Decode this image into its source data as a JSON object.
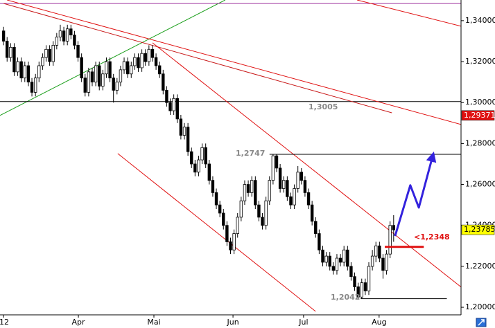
{
  "chart_data": {
    "type": "candlestick",
    "xlim": [
      0,
      130
    ],
    "xticks": [
      {
        "value": 1,
        "label": "12"
      },
      {
        "value": 22.1,
        "label": "Apr"
      },
      {
        "value": 43.4,
        "label": "Mai"
      },
      {
        "value": 65.7,
        "label": "Jun"
      },
      {
        "value": 85.6,
        "label": "Jul"
      },
      {
        "value": 106.9,
        "label": "Aug"
      }
    ],
    "ylim": [
      1.1963,
      1.3501
    ],
    "yticks": [
      {
        "value": 1.2,
        "label": "1,20000"
      },
      {
        "value": 1.22,
        "label": "1,22000"
      },
      {
        "value": 1.24,
        "label": "1,24000"
      },
      {
        "value": 1.26,
        "label": "1,26000"
      },
      {
        "value": 1.28,
        "label": "1,28000"
      },
      {
        "value": 1.3,
        "label": "1,30000"
      },
      {
        "value": 1.32,
        "label": "1,32000"
      },
      {
        "value": 1.34,
        "label": "1,34000"
      }
    ],
    "up_color": "#ffffff",
    "down_color": "#000000",
    "open": [
      1.335,
      1.33,
      1.322,
      1.327,
      1.315,
      1.32,
      1.312,
      1.318,
      1.31,
      1.305,
      1.312,
      1.318,
      1.322,
      1.326,
      1.32,
      1.328,
      1.332,
      1.335,
      1.33,
      1.336,
      1.333,
      1.328,
      1.322,
      1.312,
      1.305,
      1.315,
      1.31,
      1.318,
      1.308,
      1.314,
      1.32,
      1.312,
      1.306,
      1.31,
      1.316,
      1.32,
      1.314,
      1.318,
      1.322,
      1.317,
      1.324,
      1.32,
      1.326,
      1.322,
      1.318,
      1.314,
      1.306,
      1.3,
      1.296,
      1.302,
      1.292,
      1.284,
      1.288,
      1.276,
      1.27,
      1.266,
      1.272,
      1.278,
      1.27,
      1.262,
      1.256,
      1.25,
      1.246,
      1.24,
      1.232,
      1.228,
      1.236,
      1.244,
      1.252,
      1.26,
      1.256,
      1.262,
      1.25,
      1.244,
      1.24,
      1.252,
      1.262,
      1.274,
      1.268,
      1.258,
      1.262,
      1.254,
      1.25,
      1.258,
      1.266,
      1.262,
      1.256,
      1.25,
      1.242,
      1.236,
      1.228,
      1.222,
      1.225,
      1.22,
      1.218,
      1.224,
      1.222,
      1.228,
      1.22,
      1.215,
      1.21,
      1.205,
      1.212,
      1.208,
      1.22,
      1.225,
      1.23,
      1.224,
      1.218,
      1.226,
      1.24
    ],
    "high": [
      1.337,
      1.332,
      1.329,
      1.329,
      1.322,
      1.322,
      1.32,
      1.32,
      1.312,
      1.314,
      1.32,
      1.324,
      1.328,
      1.328,
      1.33,
      1.334,
      1.338,
      1.337,
      1.338,
      1.338,
      1.335,
      1.33,
      1.324,
      1.314,
      1.317,
      1.317,
      1.32,
      1.32,
      1.316,
      1.322,
      1.322,
      1.314,
      1.312,
      1.318,
      1.322,
      1.322,
      1.32,
      1.324,
      1.324,
      1.326,
      1.326,
      1.328,
      1.328,
      1.324,
      1.32,
      1.316,
      1.308,
      1.302,
      1.304,
      1.304,
      1.294,
      1.29,
      1.29,
      1.278,
      1.272,
      1.274,
      1.28,
      1.28,
      1.272,
      1.264,
      1.258,
      1.252,
      1.248,
      1.242,
      1.234,
      1.238,
      1.246,
      1.254,
      1.262,
      1.262,
      1.264,
      1.264,
      1.252,
      1.246,
      1.254,
      1.264,
      1.2747,
      1.2747,
      1.27,
      1.264,
      1.264,
      1.256,
      1.26,
      1.269,
      1.268,
      1.264,
      1.258,
      1.252,
      1.244,
      1.238,
      1.23,
      1.227,
      1.227,
      1.222,
      1.226,
      1.226,
      1.23,
      1.23,
      1.222,
      1.217,
      1.212,
      1.214,
      1.214,
      1.222,
      1.228,
      1.232,
      1.232,
      1.226,
      1.228,
      1.242,
      1.245
    ],
    "low": [
      1.328,
      1.32,
      1.32,
      1.313,
      1.313,
      1.31,
      1.31,
      1.308,
      1.303,
      1.303,
      1.31,
      1.316,
      1.32,
      1.318,
      1.318,
      1.326,
      1.33,
      1.328,
      1.328,
      1.331,
      1.326,
      1.32,
      1.31,
      1.303,
      1.303,
      1.308,
      1.308,
      1.306,
      1.306,
      1.312,
      1.31,
      1.3,
      1.304,
      1.308,
      1.314,
      1.312,
      1.312,
      1.316,
      1.315,
      1.315,
      1.318,
      1.318,
      1.32,
      1.316,
      1.312,
      1.304,
      1.298,
      1.294,
      1.294,
      1.29,
      1.282,
      1.282,
      1.274,
      1.268,
      1.264,
      1.264,
      1.27,
      1.268,
      1.26,
      1.254,
      1.248,
      1.244,
      1.238,
      1.23,
      1.226,
      1.226,
      1.234,
      1.242,
      1.25,
      1.254,
      1.254,
      1.248,
      1.242,
      1.238,
      1.238,
      1.25,
      1.26,
      1.266,
      1.256,
      1.256,
      1.252,
      1.248,
      1.248,
      1.256,
      1.26,
      1.254,
      1.248,
      1.24,
      1.234,
      1.226,
      1.22,
      1.22,
      1.218,
      1.216,
      1.216,
      1.22,
      1.22,
      1.218,
      1.213,
      1.208,
      1.2042,
      1.2042,
      1.206,
      1.206,
      1.218,
      1.222,
      1.222,
      1.214,
      1.216,
      1.224,
      1.232
    ],
    "close": [
      1.33,
      1.322,
      1.327,
      1.315,
      1.32,
      1.312,
      1.318,
      1.31,
      1.305,
      1.312,
      1.318,
      1.322,
      1.326,
      1.32,
      1.328,
      1.332,
      1.335,
      1.33,
      1.336,
      1.333,
      1.328,
      1.322,
      1.312,
      1.305,
      1.315,
      1.31,
      1.318,
      1.308,
      1.314,
      1.32,
      1.312,
      1.306,
      1.31,
      1.316,
      1.32,
      1.314,
      1.318,
      1.322,
      1.317,
      1.324,
      1.32,
      1.326,
      1.322,
      1.318,
      1.314,
      1.306,
      1.3,
      1.296,
      1.302,
      1.292,
      1.284,
      1.288,
      1.276,
      1.27,
      1.266,
      1.272,
      1.278,
      1.27,
      1.262,
      1.256,
      1.25,
      1.246,
      1.24,
      1.232,
      1.228,
      1.236,
      1.244,
      1.252,
      1.26,
      1.256,
      1.262,
      1.25,
      1.244,
      1.24,
      1.252,
      1.262,
      1.274,
      1.268,
      1.258,
      1.262,
      1.254,
      1.25,
      1.258,
      1.266,
      1.262,
      1.256,
      1.25,
      1.242,
      1.236,
      1.228,
      1.222,
      1.225,
      1.22,
      1.218,
      1.224,
      1.222,
      1.228,
      1.22,
      1.215,
      1.21,
      1.205,
      1.212,
      1.208,
      1.22,
      1.225,
      1.23,
      1.224,
      1.218,
      1.226,
      1.24,
      1.2378
    ],
    "lines": [
      {
        "color": "#1a9e1a",
        "x": [
          0,
          63.5
        ],
        "y": [
          1.2937,
          1.3501
        ]
      },
      {
        "color": "#000000",
        "x": [
          0,
          130
        ],
        "y": [
          1.3005,
          1.3005
        ]
      },
      {
        "color": "#9b2d9b",
        "x": [
          0,
          130
        ],
        "y": [
          1.3484,
          1.3484
        ]
      },
      {
        "color": "#e01010",
        "x": [
          2,
          130
        ],
        "y": [
          1.3501,
          1.2893
        ]
      },
      {
        "color": "#c81818",
        "x": [
          1,
          110.5
        ],
        "y": [
          1.3484,
          1.295
        ]
      },
      {
        "color": "#e01010",
        "x": [
          43,
          130
        ],
        "y": [
          1.3292,
          1.2099
        ]
      },
      {
        "color": "#e01010",
        "x": [
          33.2,
          89
        ],
        "y": [
          1.2751,
          1.198
        ]
      },
      {
        "color": "#e01010",
        "x": [
          100.7,
          130
        ],
        "y": [
          1.3501,
          1.3373
        ]
      },
      {
        "color": "#000000",
        "x": [
          76,
          130
        ],
        "y": [
          1.2747,
          1.2747
        ]
      },
      {
        "color": "#000000",
        "x": [
          101.7,
          126
        ],
        "y": [
          1.2042,
          1.2042
        ]
      }
    ],
    "level": {
      "color": "#e01010",
      "x": [
        108.5,
        119.5
      ],
      "y": [
        1.2295,
        1.2295
      ]
    },
    "projection": {
      "color": "#3322dd",
      "x": [
        111.4,
        115.7,
        118.1,
        122.2
      ],
      "y": [
        1.2348,
        1.2596,
        1.2487,
        1.2751
      ]
    },
    "annotations": [
      "1,3005",
      "1,2747",
      "1,2042",
      "<1,2348"
    ],
    "ref_price": {
      "value": 1.29371,
      "label": "1,29371",
      "color": "#e01010"
    },
    "last_price": {
      "value": 1.23785,
      "label": "1,23785",
      "color": "#ffff00"
    }
  }
}
